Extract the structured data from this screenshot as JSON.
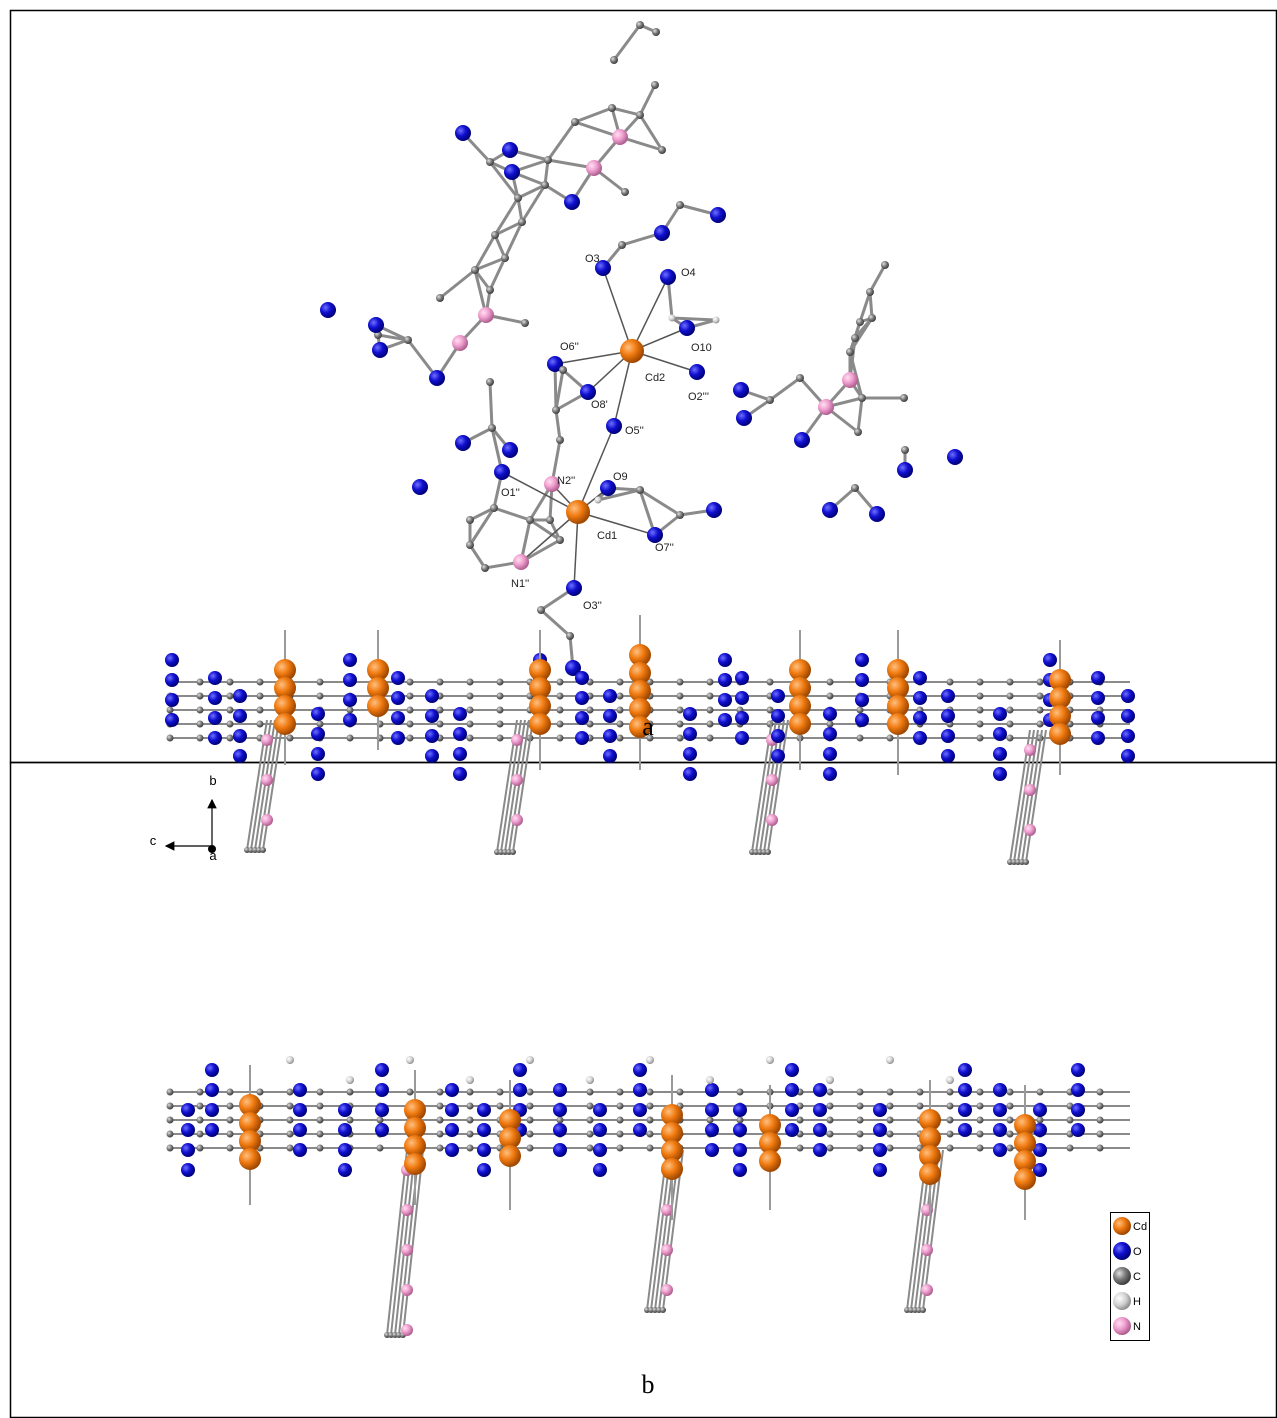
{
  "panel_a": {
    "atom_labels": [
      "O3",
      "O4",
      "O10",
      "O6''",
      "Cd2",
      "O2'''",
      "O8'",
      "O5''",
      "N2''",
      "O9",
      "O1''",
      "Cd1",
      "O7''",
      "N1''",
      "O3''"
    ],
    "caption": "a"
  },
  "panel_b": {
    "axis_labels": [
      "b",
      "c",
      "a"
    ],
    "legend": [
      "Cd",
      "O",
      "C",
      "H",
      "N"
    ],
    "caption": "b"
  }
}
